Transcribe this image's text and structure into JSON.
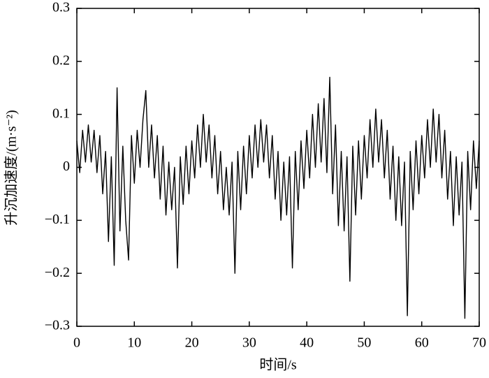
{
  "chart_data": {
    "type": "line",
    "xlabel": "时间/s",
    "ylabel": "升沉加速度/(m·s⁻²)",
    "xlim": [
      0,
      70
    ],
    "ylim": [
      -0.3,
      0.3
    ],
    "xticks": [
      0,
      10,
      20,
      30,
      40,
      50,
      60,
      70
    ],
    "yticks": [
      {
        "value": -0.3,
        "label": "−0.3"
      },
      {
        "value": -0.2,
        "label": "−0.2"
      },
      {
        "value": -0.1,
        "label": "−0.1"
      },
      0,
      0.1,
      0.2,
      0.3
    ],
    "grid": false,
    "series": [
      {
        "color": "#000000",
        "x": [
          0,
          0.5,
          1,
          1.5,
          2,
          2.5,
          3,
          3.5,
          4,
          4.5,
          5,
          5.5,
          6,
          6.5,
          7,
          7.5,
          8,
          8.5,
          9,
          9.5,
          10,
          10.5,
          11,
          11.5,
          12,
          12.5,
          13,
          13.5,
          14,
          14.5,
          15,
          15.5,
          16,
          16.5,
          17,
          17.5,
          18,
          18.5,
          19,
          19.5,
          20,
          20.5,
          21,
          21.5,
          22,
          22.5,
          23,
          23.5,
          24,
          24.5,
          25,
          25.5,
          26,
          26.5,
          27,
          27.5,
          28,
          28.5,
          29,
          29.5,
          30,
          30.5,
          31,
          31.5,
          32,
          32.5,
          33,
          33.5,
          34,
          34.5,
          35,
          35.5,
          36,
          36.5,
          37,
          37.5,
          38,
          38.5,
          39,
          39.5,
          40,
          40.5,
          41,
          41.5,
          42,
          42.5,
          43,
          43.5,
          44,
          44.5,
          45,
          45.5,
          46,
          46.5,
          47,
          47.5,
          48,
          48.5,
          49,
          49.5,
          50,
          50.5,
          51,
          51.5,
          52,
          52.5,
          53,
          53.5,
          54,
          54.5,
          55,
          55.5,
          56,
          56.5,
          57,
          57.5,
          58,
          58.5,
          59,
          59.5,
          60,
          60.5,
          61,
          61.5,
          62,
          62.5,
          63,
          63.5,
          64,
          64.5,
          65,
          65.5,
          66,
          66.5,
          67,
          67.5,
          68,
          68.5,
          69,
          69.5,
          70
        ],
        "values": [
          0.05,
          -0.01,
          0.07,
          0.01,
          0.08,
          0.01,
          0.07,
          -0.01,
          0.06,
          -0.05,
          0.03,
          -0.14,
          0.02,
          -0.185,
          0.15,
          -0.12,
          0.04,
          -0.1,
          -0.175,
          0.06,
          -0.03,
          0.07,
          0.0,
          0.09,
          0.145,
          0.0,
          0.08,
          -0.02,
          0.06,
          -0.06,
          0.04,
          -0.09,
          0.01,
          -0.08,
          0.0,
          -0.19,
          0.02,
          -0.07,
          0.04,
          -0.05,
          0.05,
          -0.02,
          0.08,
          0.0,
          0.1,
          0.01,
          0.08,
          -0.02,
          0.06,
          -0.05,
          0.03,
          -0.08,
          0.0,
          -0.09,
          0.01,
          -0.2,
          0.03,
          -0.08,
          0.04,
          -0.05,
          0.06,
          -0.02,
          0.08,
          0.0,
          0.09,
          0.01,
          0.08,
          -0.02,
          0.06,
          -0.06,
          0.03,
          -0.1,
          0.01,
          -0.09,
          0.02,
          -0.19,
          0.03,
          -0.08,
          0.05,
          -0.04,
          0.07,
          -0.02,
          0.1,
          0.0,
          0.12,
          0.01,
          0.13,
          -0.01,
          0.17,
          -0.05,
          0.08,
          -0.11,
          0.03,
          -0.12,
          0.02,
          -0.215,
          0.04,
          -0.09,
          0.05,
          -0.06,
          0.06,
          -0.02,
          0.09,
          0.0,
          0.11,
          0.01,
          0.09,
          -0.02,
          0.07,
          -0.06,
          0.04,
          -0.1,
          0.02,
          -0.11,
          0.01,
          -0.28,
          0.03,
          -0.08,
          0.05,
          -0.05,
          0.06,
          -0.02,
          0.09,
          0.0,
          0.11,
          0.01,
          0.1,
          -0.02,
          0.07,
          -0.06,
          0.03,
          -0.11,
          0.02,
          -0.09,
          0.01,
          -0.285,
          0.03,
          -0.08,
          0.05,
          -0.04,
          0.05
        ]
      }
    ]
  }
}
